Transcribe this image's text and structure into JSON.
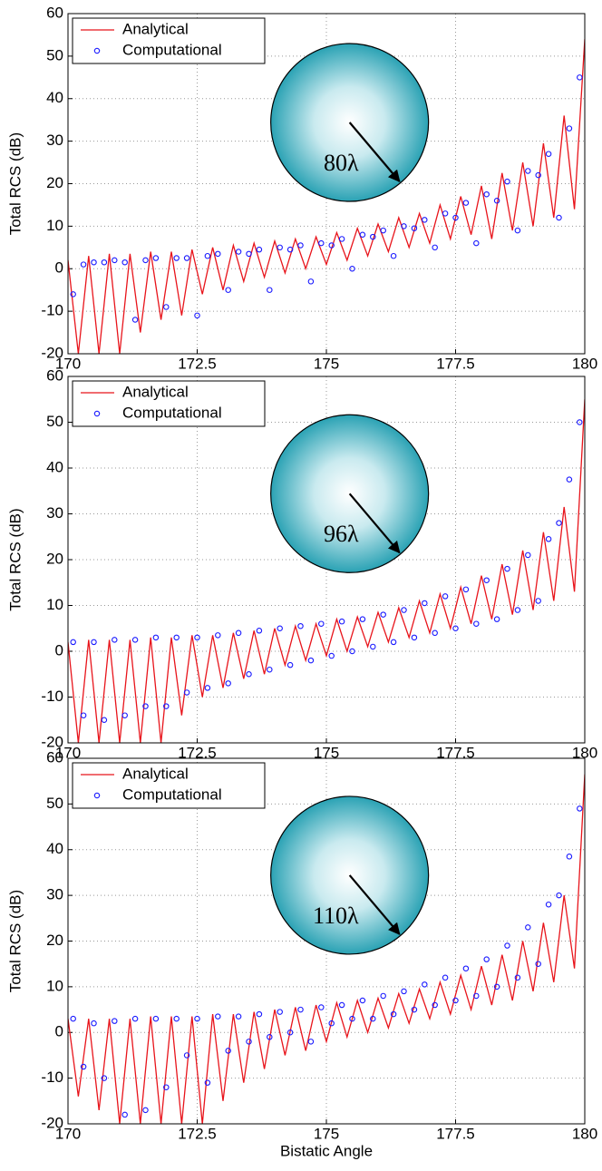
{
  "chart_data": [
    {
      "type": "line",
      "ylabel": "Total RCS (dB)",
      "annotation": "80λ",
      "xlim": [
        170,
        180
      ],
      "ylim": [
        -20,
        60
      ],
      "xticks": [
        170,
        172.5,
        175,
        177.5,
        180
      ],
      "yticks": [
        -20,
        -10,
        0,
        10,
        20,
        30,
        40,
        50,
        60
      ],
      "grid": true,
      "legend": "upper-left",
      "series": [
        {
          "name": "Analytical",
          "color": "#e8141b",
          "style": "line",
          "x": [
            170.0,
            170.2,
            170.4,
            170.6,
            170.8,
            171.0,
            171.2,
            171.4,
            171.6,
            171.8,
            172.0,
            172.2,
            172.4,
            172.6,
            172.8,
            173.0,
            173.2,
            173.4,
            173.6,
            173.8,
            174.0,
            174.2,
            174.4,
            174.6,
            174.8,
            175.0,
            175.2,
            175.4,
            175.6,
            175.8,
            176.0,
            176.2,
            176.4,
            176.6,
            176.8,
            177.0,
            177.2,
            177.4,
            177.6,
            177.8,
            178.0,
            178.2,
            178.4,
            178.6,
            178.8,
            179.0,
            179.2,
            179.4,
            179.6,
            179.8,
            180.0
          ],
          "values": [
            2,
            -20,
            3,
            -20,
            3.5,
            -20,
            3.5,
            -15,
            4,
            -12,
            4,
            -11,
            4.5,
            -6,
            5,
            -5,
            5.5,
            -3,
            6,
            -2,
            6.5,
            -1,
            7,
            0,
            7.5,
            1,
            8.5,
            2,
            9.5,
            3,
            10.5,
            4,
            12,
            5,
            13,
            6,
            15,
            7,
            17,
            8,
            19.5,
            7,
            22.5,
            9,
            25,
            10,
            29.5,
            12,
            36,
            14,
            54
          ]
        },
        {
          "name": "Computational",
          "color": "#1a1aff",
          "style": "marker",
          "x": [
            170.1,
            170.3,
            170.5,
            170.7,
            170.9,
            171.1,
            171.3,
            171.5,
            171.7,
            171.9,
            172.1,
            172.3,
            172.5,
            172.7,
            172.9,
            173.1,
            173.3,
            173.5,
            173.7,
            173.9,
            174.1,
            174.3,
            174.5,
            174.7,
            174.9,
            175.1,
            175.3,
            175.5,
            175.7,
            175.9,
            176.1,
            176.3,
            176.5,
            176.7,
            176.9,
            177.1,
            177.3,
            177.5,
            177.7,
            177.9,
            178.1,
            178.3,
            178.5,
            178.7,
            178.9,
            179.1,
            179.3,
            179.5,
            179.7,
            179.9
          ],
          "values": [
            -6,
            1,
            1.5,
            1.5,
            2,
            1.5,
            -12,
            2,
            2.5,
            -9,
            2.5,
            2.5,
            -11,
            3,
            3.5,
            -5,
            4,
            3.5,
            4.5,
            -5,
            5,
            4.5,
            5.5,
            -3,
            6,
            5.5,
            7,
            0,
            8,
            7.5,
            9,
            3,
            10,
            9.5,
            11.5,
            5,
            13,
            12,
            15.5,
            6,
            17.5,
            16,
            20.5,
            9,
            23,
            22,
            27,
            12,
            33,
            45
          ]
        }
      ]
    },
    {
      "type": "line",
      "ylabel": "Total RCS (dB)",
      "annotation": "96λ",
      "xlim": [
        170,
        180
      ],
      "ylim": [
        -20,
        60
      ],
      "xticks": [
        170,
        172.5,
        175,
        177.5,
        180
      ],
      "yticks": [
        -20,
        -10,
        0,
        10,
        20,
        30,
        40,
        50,
        60
      ],
      "grid": true,
      "legend": "upper-left",
      "series": [
        {
          "name": "Analytical",
          "color": "#e8141b",
          "style": "line",
          "x": [
            170.0,
            170.2,
            170.4,
            170.6,
            170.8,
            171.0,
            171.2,
            171.4,
            171.6,
            171.8,
            172.0,
            172.2,
            172.4,
            172.6,
            172.8,
            173.0,
            173.2,
            173.4,
            173.6,
            173.8,
            174.0,
            174.2,
            174.4,
            174.6,
            174.8,
            175.0,
            175.2,
            175.4,
            175.6,
            175.8,
            176.0,
            176.2,
            176.4,
            176.6,
            176.8,
            177.0,
            177.2,
            177.4,
            177.6,
            177.8,
            178.0,
            178.2,
            178.4,
            178.6,
            178.8,
            179.0,
            179.2,
            179.4,
            179.6,
            179.8,
            180.0
          ],
          "values": [
            2,
            -20,
            2.5,
            -20,
            2.5,
            -20,
            2.5,
            -20,
            3,
            -20,
            3,
            -14,
            3.5,
            -10,
            3.5,
            -8,
            4,
            -6,
            4.5,
            -5,
            5,
            -3,
            5.5,
            -2,
            6,
            -1,
            7,
            0,
            7.5,
            1,
            8.5,
            2,
            9.5,
            3,
            11,
            4,
            12.5,
            5,
            14,
            6,
            16.5,
            7,
            19,
            8,
            22,
            9,
            26,
            11,
            31.5,
            13,
            55
          ]
        },
        {
          "name": "Computational",
          "color": "#1a1aff",
          "style": "marker",
          "x": [
            170.1,
            170.3,
            170.5,
            170.7,
            170.9,
            171.1,
            171.3,
            171.5,
            171.7,
            171.9,
            172.1,
            172.3,
            172.5,
            172.7,
            172.9,
            173.1,
            173.3,
            173.5,
            173.7,
            173.9,
            174.1,
            174.3,
            174.5,
            174.7,
            174.9,
            175.1,
            175.3,
            175.5,
            175.7,
            175.9,
            176.1,
            176.3,
            176.5,
            176.7,
            176.9,
            177.1,
            177.3,
            177.5,
            177.7,
            177.9,
            178.1,
            178.3,
            178.5,
            178.7,
            178.9,
            179.1,
            179.3,
            179.5,
            179.7,
            179.9
          ],
          "values": [
            2,
            -14,
            2,
            -15,
            2.5,
            -14,
            2.5,
            -12,
            3,
            -12,
            3,
            -9,
            3,
            -8,
            3.5,
            -7,
            4,
            -5,
            4.5,
            -4,
            5,
            -3,
            5.5,
            -2,
            6,
            -1,
            6.5,
            0,
            7,
            1,
            8,
            2,
            9,
            3,
            10.5,
            4,
            12,
            5,
            13.5,
            6,
            15.5,
            7,
            18,
            9,
            21,
            11,
            24.5,
            28,
            37.5,
            50
          ]
        }
      ]
    },
    {
      "type": "line",
      "ylabel": "Total RCS (dB)",
      "xlabel": "Bistatic Angle",
      "annotation": "110λ",
      "xlim": [
        170,
        180
      ],
      "ylim": [
        -20,
        60
      ],
      "xticks": [
        170,
        172.5,
        175,
        177.5,
        180
      ],
      "yticks": [
        -20,
        -10,
        0,
        10,
        20,
        30,
        40,
        50,
        60
      ],
      "grid": true,
      "legend": "upper-left",
      "series": [
        {
          "name": "Analytical",
          "color": "#e8141b",
          "style": "line",
          "x": [
            170.0,
            170.2,
            170.4,
            170.6,
            170.8,
            171.0,
            171.2,
            171.4,
            171.6,
            171.8,
            172.0,
            172.2,
            172.4,
            172.6,
            172.8,
            173.0,
            173.2,
            173.4,
            173.6,
            173.8,
            174.0,
            174.2,
            174.4,
            174.6,
            174.8,
            175.0,
            175.2,
            175.4,
            175.6,
            175.8,
            176.0,
            176.2,
            176.4,
            176.6,
            176.8,
            177.0,
            177.2,
            177.4,
            177.6,
            177.8,
            178.0,
            178.2,
            178.4,
            178.6,
            178.8,
            179.0,
            179.2,
            179.4,
            179.6,
            179.8,
            180.0
          ],
          "values": [
            3,
            -14,
            3,
            -17,
            3,
            -20,
            3,
            -20,
            3.5,
            -20,
            3.5,
            -20,
            3.5,
            -20,
            4,
            -15,
            4,
            -11,
            4.5,
            -8,
            5,
            -5,
            5.5,
            -4,
            6,
            -2,
            6.5,
            -1,
            7,
            0,
            7.5,
            1,
            8.5,
            2,
            9.5,
            3,
            11,
            4,
            12.5,
            5,
            14.5,
            6,
            17,
            7,
            20,
            9,
            24,
            11,
            30,
            14,
            56.5
          ]
        },
        {
          "name": "Computational",
          "color": "#1a1aff",
          "style": "marker",
          "x": [
            170.1,
            170.3,
            170.5,
            170.7,
            170.9,
            171.1,
            171.3,
            171.5,
            171.7,
            171.9,
            172.1,
            172.3,
            172.5,
            172.7,
            172.9,
            173.1,
            173.3,
            173.5,
            173.7,
            173.9,
            174.1,
            174.3,
            174.5,
            174.7,
            174.9,
            175.1,
            175.3,
            175.5,
            175.7,
            175.9,
            176.1,
            176.3,
            176.5,
            176.7,
            176.9,
            177.1,
            177.3,
            177.5,
            177.7,
            177.9,
            178.1,
            178.3,
            178.5,
            178.7,
            178.9,
            179.1,
            179.3,
            179.5,
            179.7,
            179.9
          ],
          "values": [
            3,
            -7.5,
            2,
            -10,
            2.5,
            -18,
            3,
            -17,
            3,
            -12,
            3,
            -5,
            3,
            -11,
            3.5,
            -4,
            3.5,
            -2,
            4,
            -1,
            4.5,
            0,
            5,
            -2,
            5.5,
            2,
            6,
            3,
            7,
            3,
            8,
            4,
            9,
            5,
            10.5,
            6,
            12,
            7,
            14,
            8,
            16,
            10,
            19,
            12,
            23,
            15,
            28,
            30,
            38.5,
            49
          ]
        }
      ]
    }
  ]
}
